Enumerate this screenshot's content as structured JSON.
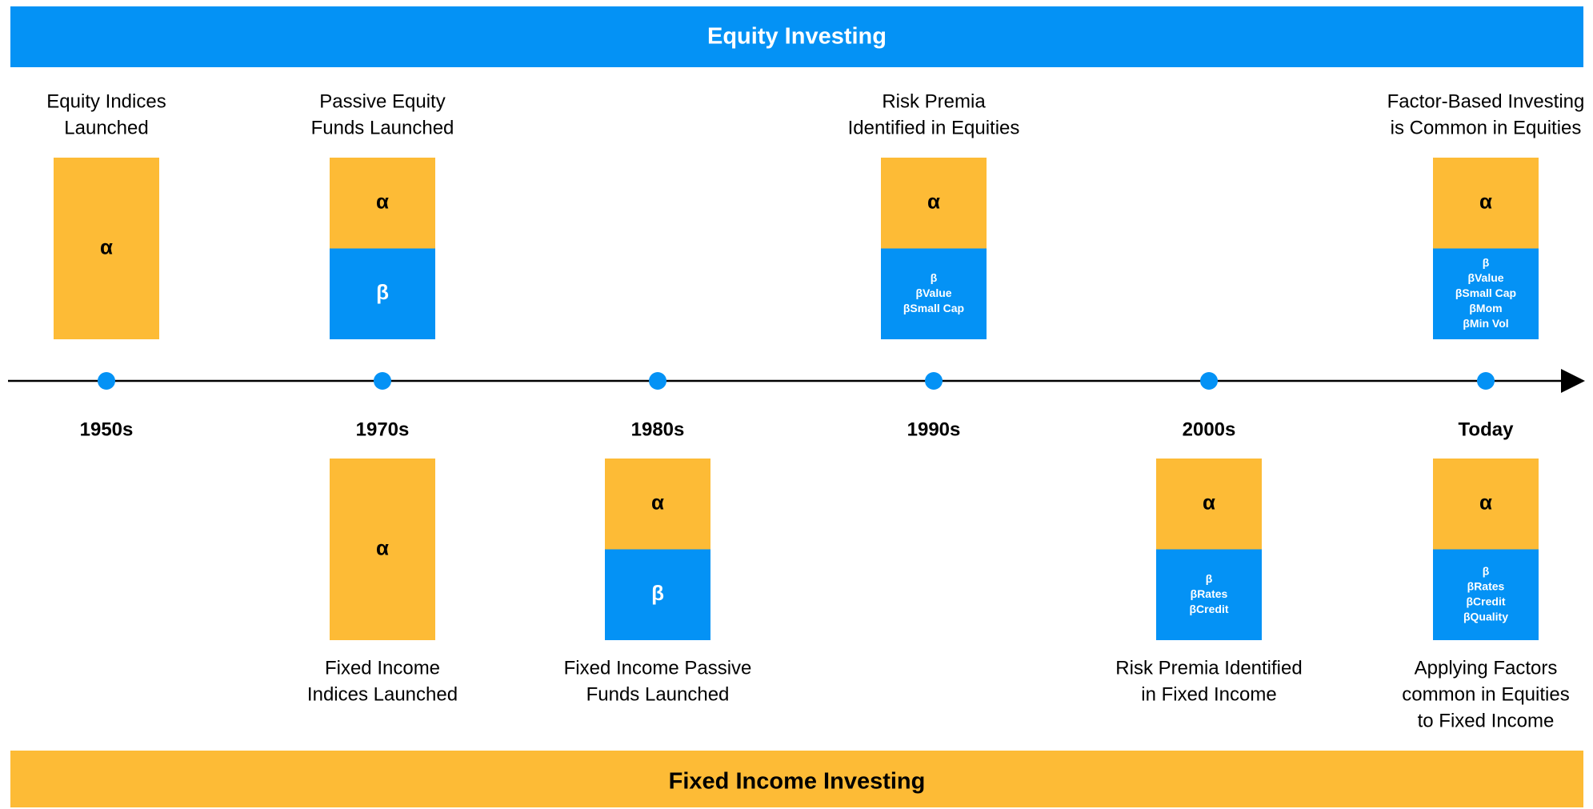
{
  "header": "Equity Investing",
  "footer": "Fixed Income Investing",
  "eras": [
    {
      "name": "1950s",
      "equity": {
        "label": [
          "Equity Indices",
          "Launched"
        ],
        "alpha": "α"
      }
    },
    {
      "name": "1970s",
      "equity": {
        "label": [
          "Passive Equity",
          "Funds Launched"
        ],
        "alpha": "α",
        "beta": [
          "β"
        ]
      },
      "fixed_income": {
        "label": [
          "Fixed Income",
          "Indices Launched"
        ],
        "alpha": "α"
      }
    },
    {
      "name": "1980s",
      "fixed_income": {
        "label": [
          "Fixed Income Passive",
          "Funds Launched"
        ],
        "alpha": "α",
        "beta": [
          "β"
        ]
      }
    },
    {
      "name": "1990s",
      "equity": {
        "label": [
          "Risk Premia",
          "Identified in Equities"
        ],
        "alpha": "α",
        "beta": [
          "β",
          "βValue",
          "βSmall Cap"
        ]
      }
    },
    {
      "name": "2000s",
      "fixed_income": {
        "label": [
          "Risk Premia Identified",
          "in Fixed Income"
        ],
        "alpha": "α",
        "beta": [
          "β",
          "βRates",
          "βCredit"
        ]
      }
    },
    {
      "name": "Today",
      "equity": {
        "label": [
          "Factor-Based Investing",
          "is Common in Equities"
        ],
        "alpha": "α",
        "beta": [
          "β",
          "βValue",
          "βSmall Cap",
          "βMom",
          "βMin Vol"
        ]
      },
      "fixed_income": {
        "label": [
          "Applying Factors",
          "common in Equities",
          "to Fixed Income"
        ],
        "alpha": "α",
        "beta": [
          "β",
          "βRates",
          "βCredit",
          "βQuality"
        ]
      }
    }
  ]
}
